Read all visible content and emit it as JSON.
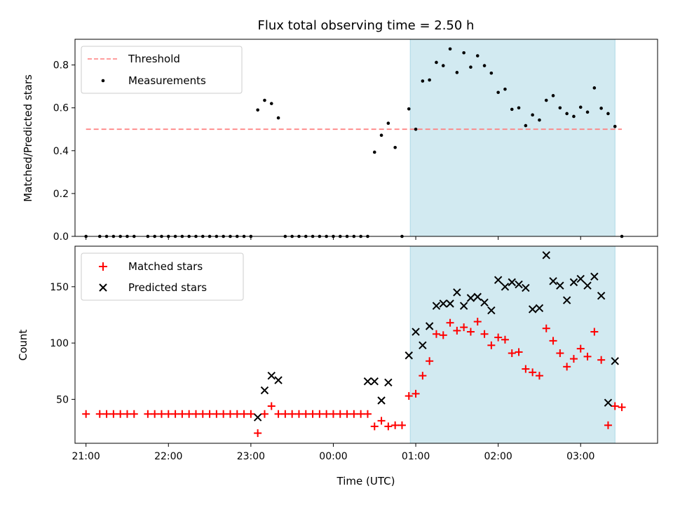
{
  "chart_data": [
    {
      "type": "scatter",
      "title": "Flux total observing time = 2.50 h",
      "xlabel": "",
      "ylabel": "Matched/Predicted stars",
      "ylim": [
        0,
        0.92
      ],
      "yticks": [
        "0.0",
        "0.2",
        "0.4",
        "0.6",
        "0.8"
      ],
      "ytick_values": [
        0,
        0.2,
        0.4,
        0.6,
        0.8
      ],
      "grid": false,
      "legend": {
        "placement": "top-left",
        "entries": [
          "Threshold",
          "Measurements"
        ]
      },
      "threshold": {
        "name": "Threshold",
        "value": 0.5,
        "x_range": [
          "21:00",
          "03:30"
        ],
        "color": "#ff7f7f"
      },
      "highlight": {
        "x_range": [
          "00:56",
          "03:25"
        ],
        "color": "#add8e6"
      },
      "series": [
        {
          "name": "Measurements",
          "color": "#000000",
          "x": [
            "21:00",
            "21:10",
            "21:15",
            "21:20",
            "21:25",
            "21:30",
            "21:35",
            "21:45",
            "21:50",
            "21:55",
            "22:00",
            "22:05",
            "22:10",
            "22:15",
            "22:20",
            "22:25",
            "22:30",
            "22:35",
            "22:40",
            "22:45",
            "22:50",
            "22:55",
            "23:00",
            "23:05",
            "23:10",
            "23:15",
            "23:20",
            "23:25",
            "23:30",
            "23:35",
            "23:40",
            "23:45",
            "23:50",
            "23:55",
            "00:00",
            "00:05",
            "00:10",
            "00:15",
            "00:20",
            "00:25",
            "00:30",
            "00:35",
            "00:40",
            "00:45",
            "00:50",
            "00:55",
            "01:00",
            "01:05",
            "01:10",
            "01:15",
            "01:20",
            "01:25",
            "01:30",
            "01:35",
            "01:40",
            "01:45",
            "01:50",
            "01:55",
            "02:00",
            "02:05",
            "02:10",
            "02:15",
            "02:20",
            "02:25",
            "02:30",
            "02:35",
            "02:40",
            "02:45",
            "02:50",
            "02:55",
            "03:00",
            "03:05",
            "03:10",
            "03:15",
            "03:20",
            "03:25",
            "03:30"
          ],
          "y": [
            0,
            0,
            0,
            0,
            0,
            0,
            0,
            0,
            0,
            0,
            0,
            0,
            0,
            0,
            0,
            0,
            0,
            0,
            0,
            0,
            0,
            0,
            0,
            0.59,
            0.635,
            0.62,
            0.553,
            0,
            0,
            0,
            0,
            0,
            0,
            0,
            0,
            0,
            0,
            0,
            0,
            0,
            0.393,
            0.472,
            0.528,
            0.415,
            0,
            0.595,
            0.5,
            0.725,
            0.73,
            0.812,
            0.797,
            0.875,
            0.765,
            0.857,
            0.79,
            0.843,
            0.797,
            0.762,
            0.672,
            0.687,
            0.593,
            0.6,
            0.517,
            0.567,
            0.543,
            0.635,
            0.657,
            0.6,
            0.573,
            0.56,
            0.603,
            0.58,
            0.693,
            0.598,
            0.573,
            0.513,
            0
          ]
        }
      ]
    },
    {
      "type": "scatter",
      "title": "",
      "xlabel": "Time (UTC)",
      "ylabel": "Count",
      "ylim": [
        11,
        186
      ],
      "yticks": [
        "50",
        "100",
        "150"
      ],
      "ytick_values": [
        50,
        100,
        150
      ],
      "xlim": [
        "20:52",
        "03:56"
      ],
      "xticks": [
        "21:00",
        "22:00",
        "23:00",
        "00:00",
        "01:00",
        "02:00",
        "03:00"
      ],
      "grid": false,
      "legend": {
        "placement": "top-left",
        "entries": [
          "Matched stars",
          "Predicted stars"
        ]
      },
      "highlight": {
        "x_range": [
          "00:56",
          "03:25"
        ],
        "color": "#add8e6"
      },
      "series": [
        {
          "name": "Matched stars",
          "marker": "+",
          "color": "#ff0000",
          "x": [
            "21:00",
            "21:10",
            "21:15",
            "21:20",
            "21:25",
            "21:30",
            "21:35",
            "21:45",
            "21:50",
            "21:55",
            "22:00",
            "22:05",
            "22:10",
            "22:15",
            "22:20",
            "22:25",
            "22:30",
            "22:35",
            "22:40",
            "22:45",
            "22:50",
            "22:55",
            "23:00",
            "23:05",
            "23:10",
            "23:15",
            "23:20",
            "23:25",
            "23:30",
            "23:35",
            "23:40",
            "23:45",
            "23:50",
            "23:55",
            "00:00",
            "00:05",
            "00:10",
            "00:15",
            "00:20",
            "00:25",
            "00:30",
            "00:35",
            "00:40",
            "00:45",
            "00:50",
            "00:55",
            "01:00",
            "01:05",
            "01:10",
            "01:15",
            "01:20",
            "01:25",
            "01:30",
            "01:35",
            "01:40",
            "01:45",
            "01:50",
            "01:55",
            "02:00",
            "02:05",
            "02:10",
            "02:15",
            "02:20",
            "02:25",
            "02:30",
            "02:35",
            "02:40",
            "02:45",
            "02:50",
            "02:55",
            "03:00",
            "03:05",
            "03:10",
            "03:15",
            "03:20",
            "03:25",
            "03:30"
          ],
          "y": [
            37,
            37,
            37,
            37,
            37,
            37,
            37,
            37,
            37,
            37,
            37,
            37,
            37,
            37,
            37,
            37,
            37,
            37,
            37,
            37,
            37,
            37,
            37,
            20,
            37,
            44,
            37,
            37,
            37,
            37,
            37,
            37,
            37,
            37,
            37,
            37,
            37,
            37,
            37,
            37,
            26,
            31,
            26,
            27,
            27,
            53,
            55,
            71,
            84,
            108,
            107,
            118,
            111,
            114,
            110,
            119,
            108,
            98,
            105,
            103,
            91,
            92,
            77,
            74,
            71,
            113,
            102,
            91,
            79,
            86,
            95,
            88,
            110,
            85,
            27,
            44,
            43
          ]
        },
        {
          "name": "Predicted stars",
          "marker": "x",
          "color": "#000000",
          "x": [
            "23:05",
            "23:10",
            "23:15",
            "23:20",
            "00:25",
            "00:30",
            "00:35",
            "00:40",
            "00:55",
            "01:00",
            "01:05",
            "01:10",
            "01:15",
            "01:20",
            "01:25",
            "01:30",
            "01:35",
            "01:40",
            "01:45",
            "01:50",
            "01:55",
            "02:00",
            "02:05",
            "02:10",
            "02:15",
            "02:20",
            "02:25",
            "02:30",
            "02:35",
            "02:40",
            "02:45",
            "02:50",
            "02:55",
            "03:00",
            "03:05",
            "03:10",
            "03:15",
            "03:20",
            "03:25"
          ],
          "y": [
            34,
            58,
            71,
            67,
            66,
            66,
            49,
            65,
            89,
            110,
            98,
            115,
            133,
            135,
            135,
            145,
            133,
            140,
            141,
            136,
            129,
            156,
            150,
            154,
            152,
            149,
            130,
            131,
            178,
            155,
            151,
            138,
            154,
            157,
            151,
            159,
            142,
            47,
            84
          ]
        }
      ]
    }
  ]
}
